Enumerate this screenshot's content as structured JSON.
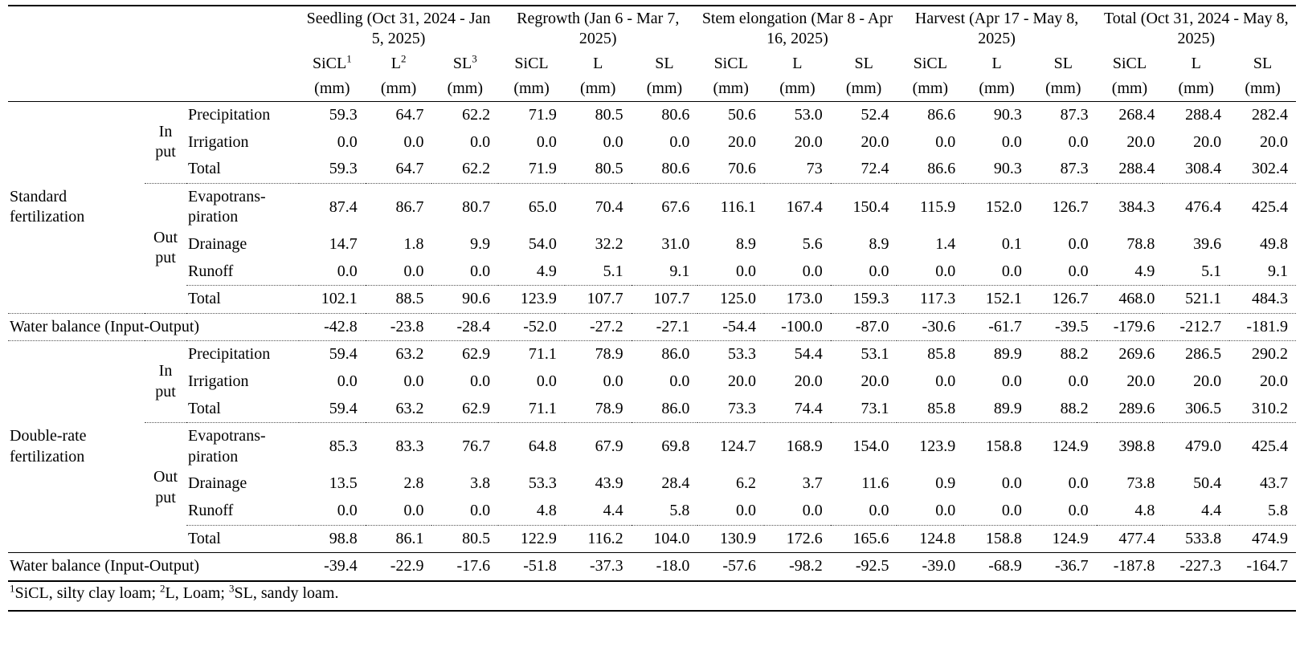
{
  "colors": {
    "text": "#000000",
    "background": "#ffffff"
  },
  "table": {
    "col_groups": [
      {
        "label": "Seedling (Oct 31, 2024 - Jan 5, 2025)"
      },
      {
        "label": "Regrowth (Jan 6 - Mar 7, 2025)"
      },
      {
        "label": "Stem elongation (Mar 8 - Apr 16, 2025)"
      },
      {
        "label": "Harvest (Apr 17 - May 8, 2025)"
      },
      {
        "label": "Total (Oct 31, 2024 - May 8, 2025)"
      }
    ],
    "soil_headers": [
      {
        "label": "SiCL",
        "sup": "1"
      },
      {
        "label": "L",
        "sup": "2"
      },
      {
        "label": "SL",
        "sup": "3"
      },
      {
        "label": "SiCL"
      },
      {
        "label": "L"
      },
      {
        "label": "SL"
      },
      {
        "label": "SiCL"
      },
      {
        "label": "L"
      },
      {
        "label": "SL"
      },
      {
        "label": "SiCL"
      },
      {
        "label": "L"
      },
      {
        "label": "SL"
      },
      {
        "label": "SiCL"
      },
      {
        "label": "L"
      },
      {
        "label": "SL"
      }
    ],
    "unit": "(mm)",
    "sections": [
      {
        "group": "Standard fertilization",
        "rows": [
          {
            "io": "In\nput",
            "iospan": 3,
            "io_bb": "dotted",
            "name": "Precipitation",
            "values": [
              "59.3",
              "64.7",
              "62.2",
              "71.9",
              "80.5",
              "80.6",
              "50.6",
              "53.0",
              "52.4",
              "86.6",
              "90.3",
              "87.3",
              "268.4",
              "288.4",
              "282.4"
            ]
          },
          {
            "name": "Irrigation",
            "values": [
              "0.0",
              "0.0",
              "0.0",
              "0.0",
              "0.0",
              "0.0",
              "20.0",
              "20.0",
              "20.0",
              "0.0",
              "0.0",
              "0.0",
              "20.0",
              "20.0",
              "20.0"
            ]
          },
          {
            "name": "Total",
            "bb": "dotted",
            "values": [
              "59.3",
              "64.7",
              "62.2",
              "71.9",
              "80.5",
              "80.6",
              "70.6",
              "73",
              "72.4",
              "86.6",
              "90.3",
              "87.3",
              "288.4",
              "308.4",
              "302.4"
            ]
          },
          {
            "io": "Out\nput",
            "iospan": 4,
            "io_bb": "dotted",
            "name": "Evapotrans-\npiration",
            "values": [
              "87.4",
              "86.7",
              "80.7",
              "65.0",
              "70.4",
              "67.6",
              "116.1",
              "167.4",
              "150.4",
              "115.9",
              "152.0",
              "126.7",
              "384.3",
              "476.4",
              "425.4"
            ]
          },
          {
            "name": "Drainage",
            "values": [
              "14.7",
              "1.8",
              "9.9",
              "54.0",
              "32.2",
              "31.0",
              "8.9",
              "5.6",
              "8.9",
              "1.4",
              "0.1",
              "0.0",
              "78.8",
              "39.6",
              "49.8"
            ]
          },
          {
            "name": "Runoff",
            "bb": "dotted",
            "values": [
              "0.0",
              "0.0",
              "0.0",
              "4.9",
              "5.1",
              "9.1",
              "0.0",
              "0.0",
              "0.0",
              "0.0",
              "0.0",
              "0.0",
              "4.9",
              "5.1",
              "9.1"
            ]
          },
          {
            "name": "Total",
            "bb": "dotted",
            "values": [
              "102.1",
              "88.5",
              "90.6",
              "123.9",
              "107.7",
              "107.7",
              "125.0",
              "173.0",
              "159.3",
              "117.3",
              "152.1",
              "126.7",
              "468.0",
              "521.1",
              "484.3"
            ]
          }
        ],
        "water_balance": {
          "label": "Water balance (Input-Output)",
          "bb": "dotted",
          "values": [
            "-42.8",
            "-23.8",
            "-28.4",
            "-52.0",
            "-27.2",
            "-27.1",
            "-54.4",
            "-100.0",
            "-87.0",
            "-30.6",
            "-61.7",
            "-39.5",
            "-179.6",
            "-212.7",
            "-181.9"
          ]
        }
      },
      {
        "group": "Double-rate fertilization",
        "rows": [
          {
            "io": "In\nput",
            "iospan": 3,
            "io_bb": "dotted",
            "name": "Precipitation",
            "values": [
              "59.4",
              "63.2",
              "62.9",
              "71.1",
              "78.9",
              "86.0",
              "53.3",
              "54.4",
              "53.1",
              "85.8",
              "89.9",
              "88.2",
              "269.6",
              "286.5",
              "290.2"
            ]
          },
          {
            "name": "Irrigation",
            "values": [
              "0.0",
              "0.0",
              "0.0",
              "0.0",
              "0.0",
              "0.0",
              "20.0",
              "20.0",
              "20.0",
              "0.0",
              "0.0",
              "0.0",
              "20.0",
              "20.0",
              "20.0"
            ]
          },
          {
            "name": "Total",
            "bb": "dotted",
            "values": [
              "59.4",
              "63.2",
              "62.9",
              "71.1",
              "78.9",
              "86.0",
              "73.3",
              "74.4",
              "73.1",
              "85.8",
              "89.9",
              "88.2",
              "289.6",
              "306.5",
              "310.2"
            ]
          },
          {
            "io": "Out\nput",
            "iospan": 4,
            "io_bb": "solid",
            "name": "Evapotrans-\npiration",
            "values": [
              "85.3",
              "83.3",
              "76.7",
              "64.8",
              "67.9",
              "69.8",
              "124.7",
              "168.9",
              "154.0",
              "123.9",
              "158.8",
              "124.9",
              "398.8",
              "479.0",
              "425.4"
            ]
          },
          {
            "name": "Drainage",
            "values": [
              "13.5",
              "2.8",
              "3.8",
              "53.3",
              "43.9",
              "28.4",
              "6.2",
              "3.7",
              "11.6",
              "0.9",
              "0.0",
              "0.0",
              "73.8",
              "50.4",
              "43.7"
            ]
          },
          {
            "name": "Runoff",
            "bb": "dotted",
            "values": [
              "0.0",
              "0.0",
              "0.0",
              "4.8",
              "4.4",
              "5.8",
              "0.0",
              "0.0",
              "0.0",
              "0.0",
              "0.0",
              "0.0",
              "4.8",
              "4.4",
              "5.8"
            ]
          },
          {
            "name": "Total",
            "bb": "solid",
            "values": [
              "98.8",
              "86.1",
              "80.5",
              "122.9",
              "116.2",
              "104.0",
              "130.9",
              "172.6",
              "165.6",
              "124.8",
              "158.8",
              "124.9",
              "477.4",
              "533.8",
              "474.9"
            ]
          }
        ],
        "water_balance": {
          "label": "Water balance (Input-Output)",
          "bb": "thick",
          "values": [
            "-39.4",
            "-22.9",
            "-17.6",
            "-51.8",
            "-37.3",
            "-18.0",
            "-57.6",
            "-98.2",
            "-92.5",
            "-39.0",
            "-68.9",
            "-36.7",
            "-187.8",
            "-227.3",
            "-164.7"
          ]
        }
      }
    ],
    "footnote_parts": [
      {
        "sup": "1",
        "text": "SiCL, silty clay loam; "
      },
      {
        "sup": "2",
        "text": "L, Loam; "
      },
      {
        "sup": "3",
        "text": "SL, sandy loam."
      }
    ]
  }
}
